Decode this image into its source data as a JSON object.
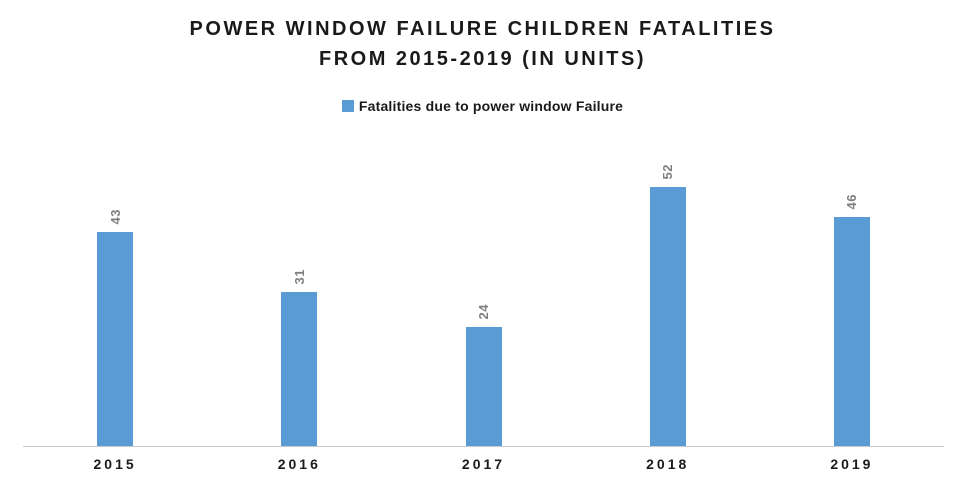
{
  "chart_data": {
    "type": "bar",
    "title": "POWER WINDOW FAILURE CHILDREN FATALITIES FROM 2015-2019 (IN UNITS)",
    "title_lines": [
      "POWER WINDOW FAILURE CHILDREN FATALITIES",
      "FROM 2015-2019 (IN UNITS)"
    ],
    "legend": [
      {
        "label": "Fatalities due to power window Failure",
        "color": "#5B9BD5"
      }
    ],
    "legend_position": "top",
    "categories": [
      "2015",
      "2016",
      "2017",
      "2018",
      "2019"
    ],
    "series": [
      {
        "name": "Fatalities due to power window Failure",
        "values": [
          43,
          31,
          24,
          52,
          46
        ]
      }
    ],
    "data_labels": {
      "shown": true,
      "rotation": -90,
      "color": "#7f7f7f"
    },
    "xlabel": "",
    "ylabel": "",
    "ylim": [
      0,
      60
    ],
    "grid": false,
    "y_axis_visible": false,
    "colors": {
      "bar": "#5B9BD5",
      "axis_line": "#c9c9c9",
      "title_text": "#1a1a1a",
      "background": "#ffffff"
    }
  }
}
